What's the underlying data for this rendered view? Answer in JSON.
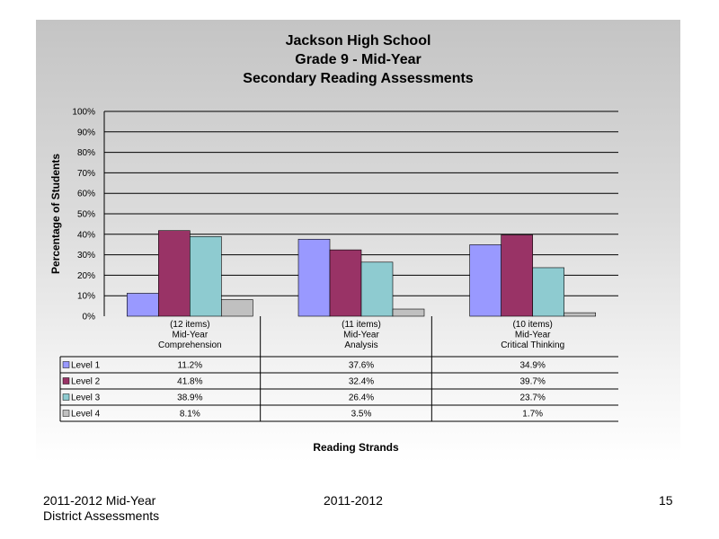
{
  "chart_data": {
    "type": "bar",
    "title": [
      "Jackson High School",
      "Grade 9 - Mid-Year",
      "Secondary Reading Assessments"
    ],
    "ylabel": "Percentage of Students",
    "xlabel": "Reading Strands",
    "ylim": [
      0,
      100
    ],
    "yticks": [
      "0%",
      "10%",
      "20%",
      "30%",
      "40%",
      "50%",
      "60%",
      "70%",
      "80%",
      "90%",
      "100%"
    ],
    "grid": true,
    "categories": [
      [
        "(12 items)",
        "Mid-Year",
        "Comprehension"
      ],
      [
        "(11 items)",
        "Mid-Year",
        "Analysis"
      ],
      [
        "(10 items)",
        "Mid-Year",
        "Critical Thinking"
      ]
    ],
    "series": [
      {
        "name": "Level 1",
        "color": "#9999ff",
        "values": [
          11.2,
          37.6,
          34.9
        ],
        "labels": [
          "11.2%",
          "37.6%",
          "34.9%"
        ]
      },
      {
        "name": "Level 2",
        "color": "#993366",
        "values": [
          41.8,
          32.4,
          39.7
        ],
        "labels": [
          "41.8%",
          "32.4%",
          "39.7%"
        ]
      },
      {
        "name": "Level 3",
        "color": "#8ecbd0",
        "values": [
          38.9,
          26.4,
          23.7
        ],
        "labels": [
          "38.9%",
          "26.4%",
          "23.7%"
        ]
      },
      {
        "name": "Level 4",
        "color": "#c0c0c0",
        "values": [
          8.1,
          3.5,
          1.7
        ],
        "labels": [
          "8.1%",
          "3.5%",
          "1.7%"
        ]
      }
    ]
  },
  "footer": {
    "left_line1": "2011-2012  Mid-Year",
    "left_line2": "District Assessments",
    "center": "2011-2012",
    "page": "15"
  }
}
